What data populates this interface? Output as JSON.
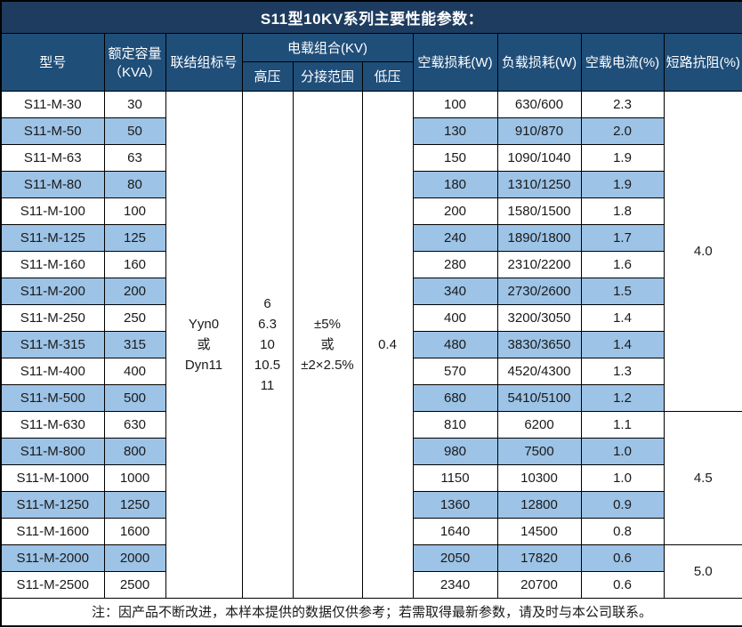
{
  "title": "S11型10KV系列主要性能参数：",
  "colors": {
    "title_bg": "#1E3C5F",
    "header_bg": "#1F4E79",
    "stripe": "#9DC3E6",
    "border": "#000000",
    "header_text": "#FFFFFF",
    "body_text": "#1A1A1A"
  },
  "headers": {
    "model": "型号",
    "capacity_line1": "额定容量",
    "capacity_line2": "（KVA）",
    "connection": "联结组标号",
    "voltage_combo": "电载组合(KV)",
    "hv": "高压",
    "tap_range": "分接范围",
    "lv": "低压",
    "no_load_loss": "空载损耗(W)",
    "load_loss": "负载损耗(W)",
    "no_load_current": "空载电流(%)",
    "impedance": "短路抗阻(%)"
  },
  "merged": {
    "connection_lines": [
      "Yyn0",
      "或",
      "Dyn11"
    ],
    "hv_lines": [
      "6",
      "6.3",
      "10",
      "10.5",
      "11"
    ],
    "tap_range_lines": [
      "±5%",
      "或",
      "±2×2.5%"
    ],
    "lv": "0.4",
    "impedance_groups": [
      {
        "value": "4.0",
        "row_span": 12
      },
      {
        "value": "4.5",
        "row_span": 5
      },
      {
        "value": "5.0",
        "row_span": 2
      }
    ]
  },
  "rows": [
    {
      "model": "S11-M-30",
      "capacity": "30",
      "no_load_loss": "100",
      "load_loss": "630/600",
      "no_load_current": "2.3"
    },
    {
      "model": "S11-M-50",
      "capacity": "50",
      "no_load_loss": "130",
      "load_loss": "910/870",
      "no_load_current": "2.0"
    },
    {
      "model": "S11-M-63",
      "capacity": "63",
      "no_load_loss": "150",
      "load_loss": "1090/1040",
      "no_load_current": "1.9"
    },
    {
      "model": "S11-M-80",
      "capacity": "80",
      "no_load_loss": "180",
      "load_loss": "1310/1250",
      "no_load_current": "1.9"
    },
    {
      "model": "S11-M-100",
      "capacity": "100",
      "no_load_loss": "200",
      "load_loss": "1580/1500",
      "no_load_current": "1.8"
    },
    {
      "model": "S11-M-125",
      "capacity": "125",
      "no_load_loss": "240",
      "load_loss": "1890/1800",
      "no_load_current": "1.7"
    },
    {
      "model": "S11-M-160",
      "capacity": "160",
      "no_load_loss": "280",
      "load_loss": "2310/2200",
      "no_load_current": "1.6"
    },
    {
      "model": "S11-M-200",
      "capacity": "200",
      "no_load_loss": "340",
      "load_loss": "2730/2600",
      "no_load_current": "1.5"
    },
    {
      "model": "S11-M-250",
      "capacity": "250",
      "no_load_loss": "400",
      "load_loss": "3200/3050",
      "no_load_current": "1.4"
    },
    {
      "model": "S11-M-315",
      "capacity": "315",
      "no_load_loss": "480",
      "load_loss": "3830/3650",
      "no_load_current": "1.4"
    },
    {
      "model": "S11-M-400",
      "capacity": "400",
      "no_load_loss": "570",
      "load_loss": "4520/4300",
      "no_load_current": "1.3"
    },
    {
      "model": "S11-M-500",
      "capacity": "500",
      "no_load_loss": "680",
      "load_loss": "5410/5100",
      "no_load_current": "1.2"
    },
    {
      "model": "S11-M-630",
      "capacity": "630",
      "no_load_loss": "810",
      "load_loss": "6200",
      "no_load_current": "1.1"
    },
    {
      "model": "S11-M-800",
      "capacity": "800",
      "no_load_loss": "980",
      "load_loss": "7500",
      "no_load_current": "1.0"
    },
    {
      "model": "S11-M-1000",
      "capacity": "1000",
      "no_load_loss": "1150",
      "load_loss": "10300",
      "no_load_current": "1.0"
    },
    {
      "model": "S11-M-1250",
      "capacity": "1250",
      "no_load_loss": "1360",
      "load_loss": "12800",
      "no_load_current": "0.9"
    },
    {
      "model": "S11-M-1600",
      "capacity": "1600",
      "no_load_loss": "1640",
      "load_loss": "14500",
      "no_load_current": "0.8"
    },
    {
      "model": "S11-M-2000",
      "capacity": "2000",
      "no_load_loss": "2050",
      "load_loss": "17820",
      "no_load_current": "0.6"
    },
    {
      "model": "S11-M-2500",
      "capacity": "2500",
      "no_load_loss": "2340",
      "load_loss": "20700",
      "no_load_current": "0.6"
    }
  ],
  "note": "注：因产品不断改进，本样本提供的数据仅供参考；若需取得最新参数，请及时与本公司联系。"
}
